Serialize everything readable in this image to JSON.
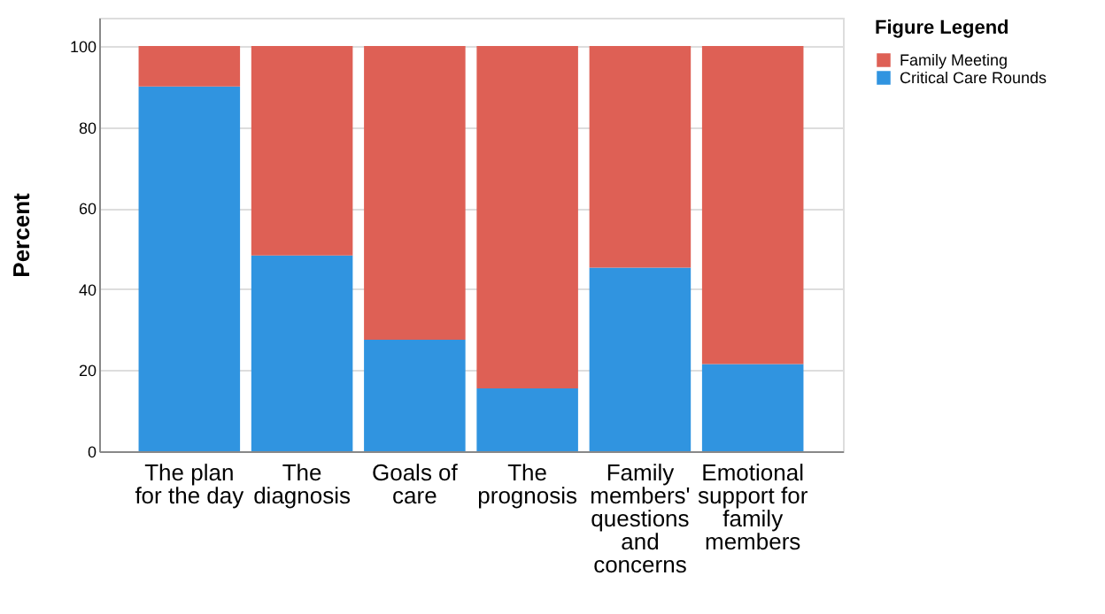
{
  "chart_data": {
    "type": "bar",
    "stacked": true,
    "ylabel": "Percent",
    "legend_title": "Figure Legend",
    "legend": "top right",
    "categories": [
      "The plan for the day",
      "The diagnosis",
      "Goals of care",
      "The prognosis",
      "Family members' questions and concerns",
      "Emotional support for family members"
    ],
    "series": [
      {
        "name": "Critical Care Rounds",
        "color": "#3094e0",
        "values": [
          90,
          48.3,
          27.5,
          15.5,
          45.3,
          21.5
        ]
      },
      {
        "name": "Family Meeting",
        "color": "#de6055",
        "values": [
          10,
          51.7,
          72.5,
          84.5,
          54.7,
          78.5
        ]
      }
    ],
    "ylim": [
      0,
      107
    ],
    "yticks": [
      0,
      20,
      40,
      60,
      80,
      100
    ],
    "grid": "y"
  }
}
